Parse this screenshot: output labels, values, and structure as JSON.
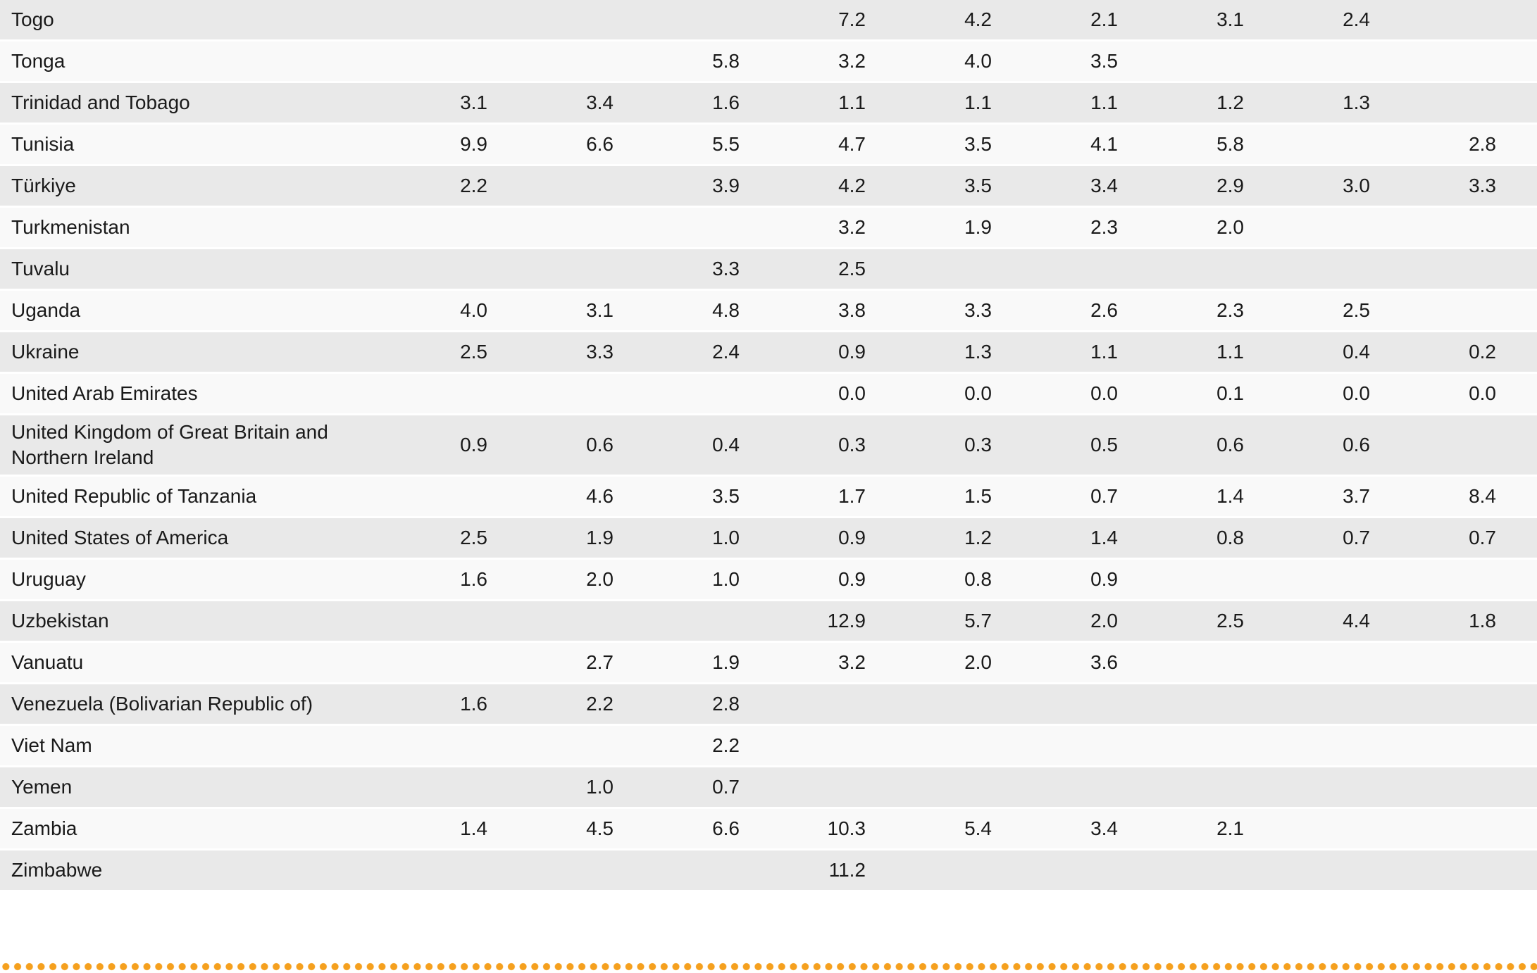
{
  "table": {
    "striping": {
      "odd_row_bg": "#e9e9e9",
      "even_row_bg": "#f9f9f9",
      "separator": "#ffffff"
    },
    "num_columns": 9,
    "rows": [
      {
        "country": "Togo",
        "values": [
          "",
          "",
          "",
          "7.2",
          "4.2",
          "2.1",
          "3.1",
          "2.4",
          ""
        ]
      },
      {
        "country": "Tonga",
        "values": [
          "",
          "",
          "5.8",
          "3.2",
          "4.0",
          "3.5",
          "",
          "",
          ""
        ]
      },
      {
        "country": "Trinidad and Tobago",
        "values": [
          "3.1",
          "3.4",
          "1.6",
          "1.1",
          "1.1",
          "1.1",
          "1.2",
          "1.3",
          ""
        ]
      },
      {
        "country": "Tunisia",
        "values": [
          "9.9",
          "6.6",
          "5.5",
          "4.7",
          "3.5",
          "4.1",
          "5.8",
          "",
          "2.8"
        ]
      },
      {
        "country": "Türkiye",
        "values": [
          "2.2",
          "",
          "3.9",
          "4.2",
          "3.5",
          "3.4",
          "2.9",
          "3.0",
          "3.3"
        ]
      },
      {
        "country": "Turkmenistan",
        "values": [
          "",
          "",
          "",
          "3.2",
          "1.9",
          "2.3",
          "2.0",
          "",
          ""
        ]
      },
      {
        "country": "Tuvalu",
        "values": [
          "",
          "",
          "3.3",
          "2.5",
          "",
          "",
          "",
          "",
          ""
        ]
      },
      {
        "country": "Uganda",
        "values": [
          "4.0",
          "3.1",
          "4.8",
          "3.8",
          "3.3",
          "2.6",
          "2.3",
          "2.5",
          ""
        ]
      },
      {
        "country": "Ukraine",
        "values": [
          "2.5",
          "3.3",
          "2.4",
          "0.9",
          "1.3",
          "1.1",
          "1.1",
          "0.4",
          "0.2"
        ]
      },
      {
        "country": "United Arab Emirates",
        "values": [
          "",
          "",
          "",
          "0.0",
          "0.0",
          "0.0",
          "0.1",
          "0.0",
          "0.0"
        ]
      },
      {
        "country": "United Kingdom of Great Britain and Northern Ireland",
        "values": [
          "0.9",
          "0.6",
          "0.4",
          "0.3",
          "0.3",
          "0.5",
          "0.6",
          "0.6",
          ""
        ]
      },
      {
        "country": "United Republic of Tanzania",
        "values": [
          "",
          "4.6",
          "3.5",
          "1.7",
          "1.5",
          "0.7",
          "1.4",
          "3.7",
          "8.4"
        ]
      },
      {
        "country": "United States of America",
        "values": [
          "2.5",
          "1.9",
          "1.0",
          "0.9",
          "1.2",
          "1.4",
          "0.8",
          "0.7",
          "0.7"
        ]
      },
      {
        "country": "Uruguay",
        "values": [
          "1.6",
          "2.0",
          "1.0",
          "0.9",
          "0.8",
          "0.9",
          "",
          "",
          ""
        ]
      },
      {
        "country": "Uzbekistan",
        "values": [
          "",
          "",
          "",
          "12.9",
          "5.7",
          "2.0",
          "2.5",
          "4.4",
          "1.8"
        ]
      },
      {
        "country": "Vanuatu",
        "values": [
          "",
          "2.7",
          "1.9",
          "3.2",
          "2.0",
          "3.6",
          "",
          "",
          ""
        ]
      },
      {
        "country": "Venezuela (Bolivarian Republic of)",
        "values": [
          "1.6",
          "2.2",
          "2.8",
          "",
          "",
          "",
          "",
          "",
          ""
        ]
      },
      {
        "country": "Viet Nam",
        "values": [
          "",
          "",
          "2.2",
          "",
          "",
          "",
          "",
          "",
          ""
        ]
      },
      {
        "country": "Yemen",
        "values": [
          "",
          "1.0",
          "0.7",
          "",
          "",
          "",
          "",
          "",
          ""
        ]
      },
      {
        "country": "Zambia",
        "values": [
          "1.4",
          "4.5",
          "6.6",
          "10.3",
          "5.4",
          "3.4",
          "2.1",
          "",
          ""
        ]
      },
      {
        "country": "Zimbabwe",
        "values": [
          "",
          "",
          "",
          "11.2",
          "",
          "",
          "",
          "",
          ""
        ]
      }
    ]
  },
  "footer": {
    "dotted_divider_color": "#f5a01e"
  }
}
